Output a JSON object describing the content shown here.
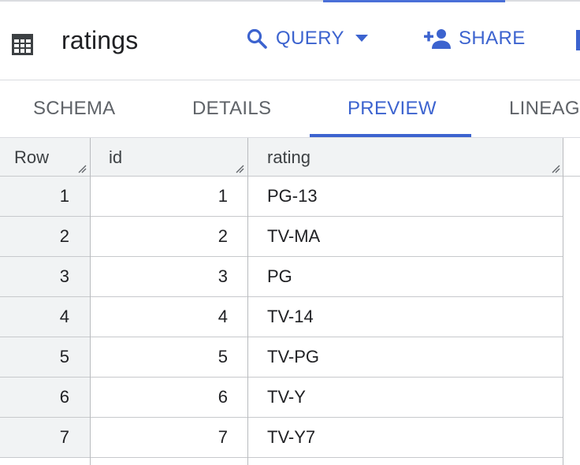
{
  "header": {
    "title": "ratings",
    "query_label": "QUERY",
    "share_label": "SHARE"
  },
  "tabs": [
    {
      "label": "SCHEMA",
      "active": false
    },
    {
      "label": "DETAILS",
      "active": false
    },
    {
      "label": "PREVIEW",
      "active": true
    },
    {
      "label": "LINEAG",
      "active": false
    }
  ],
  "table": {
    "columns": [
      "Row",
      "id",
      "rating"
    ],
    "rows": [
      {
        "row": "1",
        "id": "1",
        "rating": "PG-13"
      },
      {
        "row": "2",
        "id": "2",
        "rating": "TV-MA"
      },
      {
        "row": "3",
        "id": "3",
        "rating": "PG"
      },
      {
        "row": "4",
        "id": "4",
        "rating": "TV-14"
      },
      {
        "row": "5",
        "id": "5",
        "rating": "TV-PG"
      },
      {
        "row": "6",
        "id": "6",
        "rating": "TV-Y"
      },
      {
        "row": "7",
        "id": "7",
        "rating": "TV-Y7"
      }
    ]
  },
  "icons": {
    "table": "table-icon",
    "query": "search-icon",
    "dropdown": "caret-down-icon",
    "share": "person-add-icon",
    "resize": "resize-grip-icon"
  },
  "colors": {
    "accent": "#3c63cf",
    "text": "#202124",
    "muted": "#5f6368",
    "header_bg": "#f1f3f4"
  }
}
